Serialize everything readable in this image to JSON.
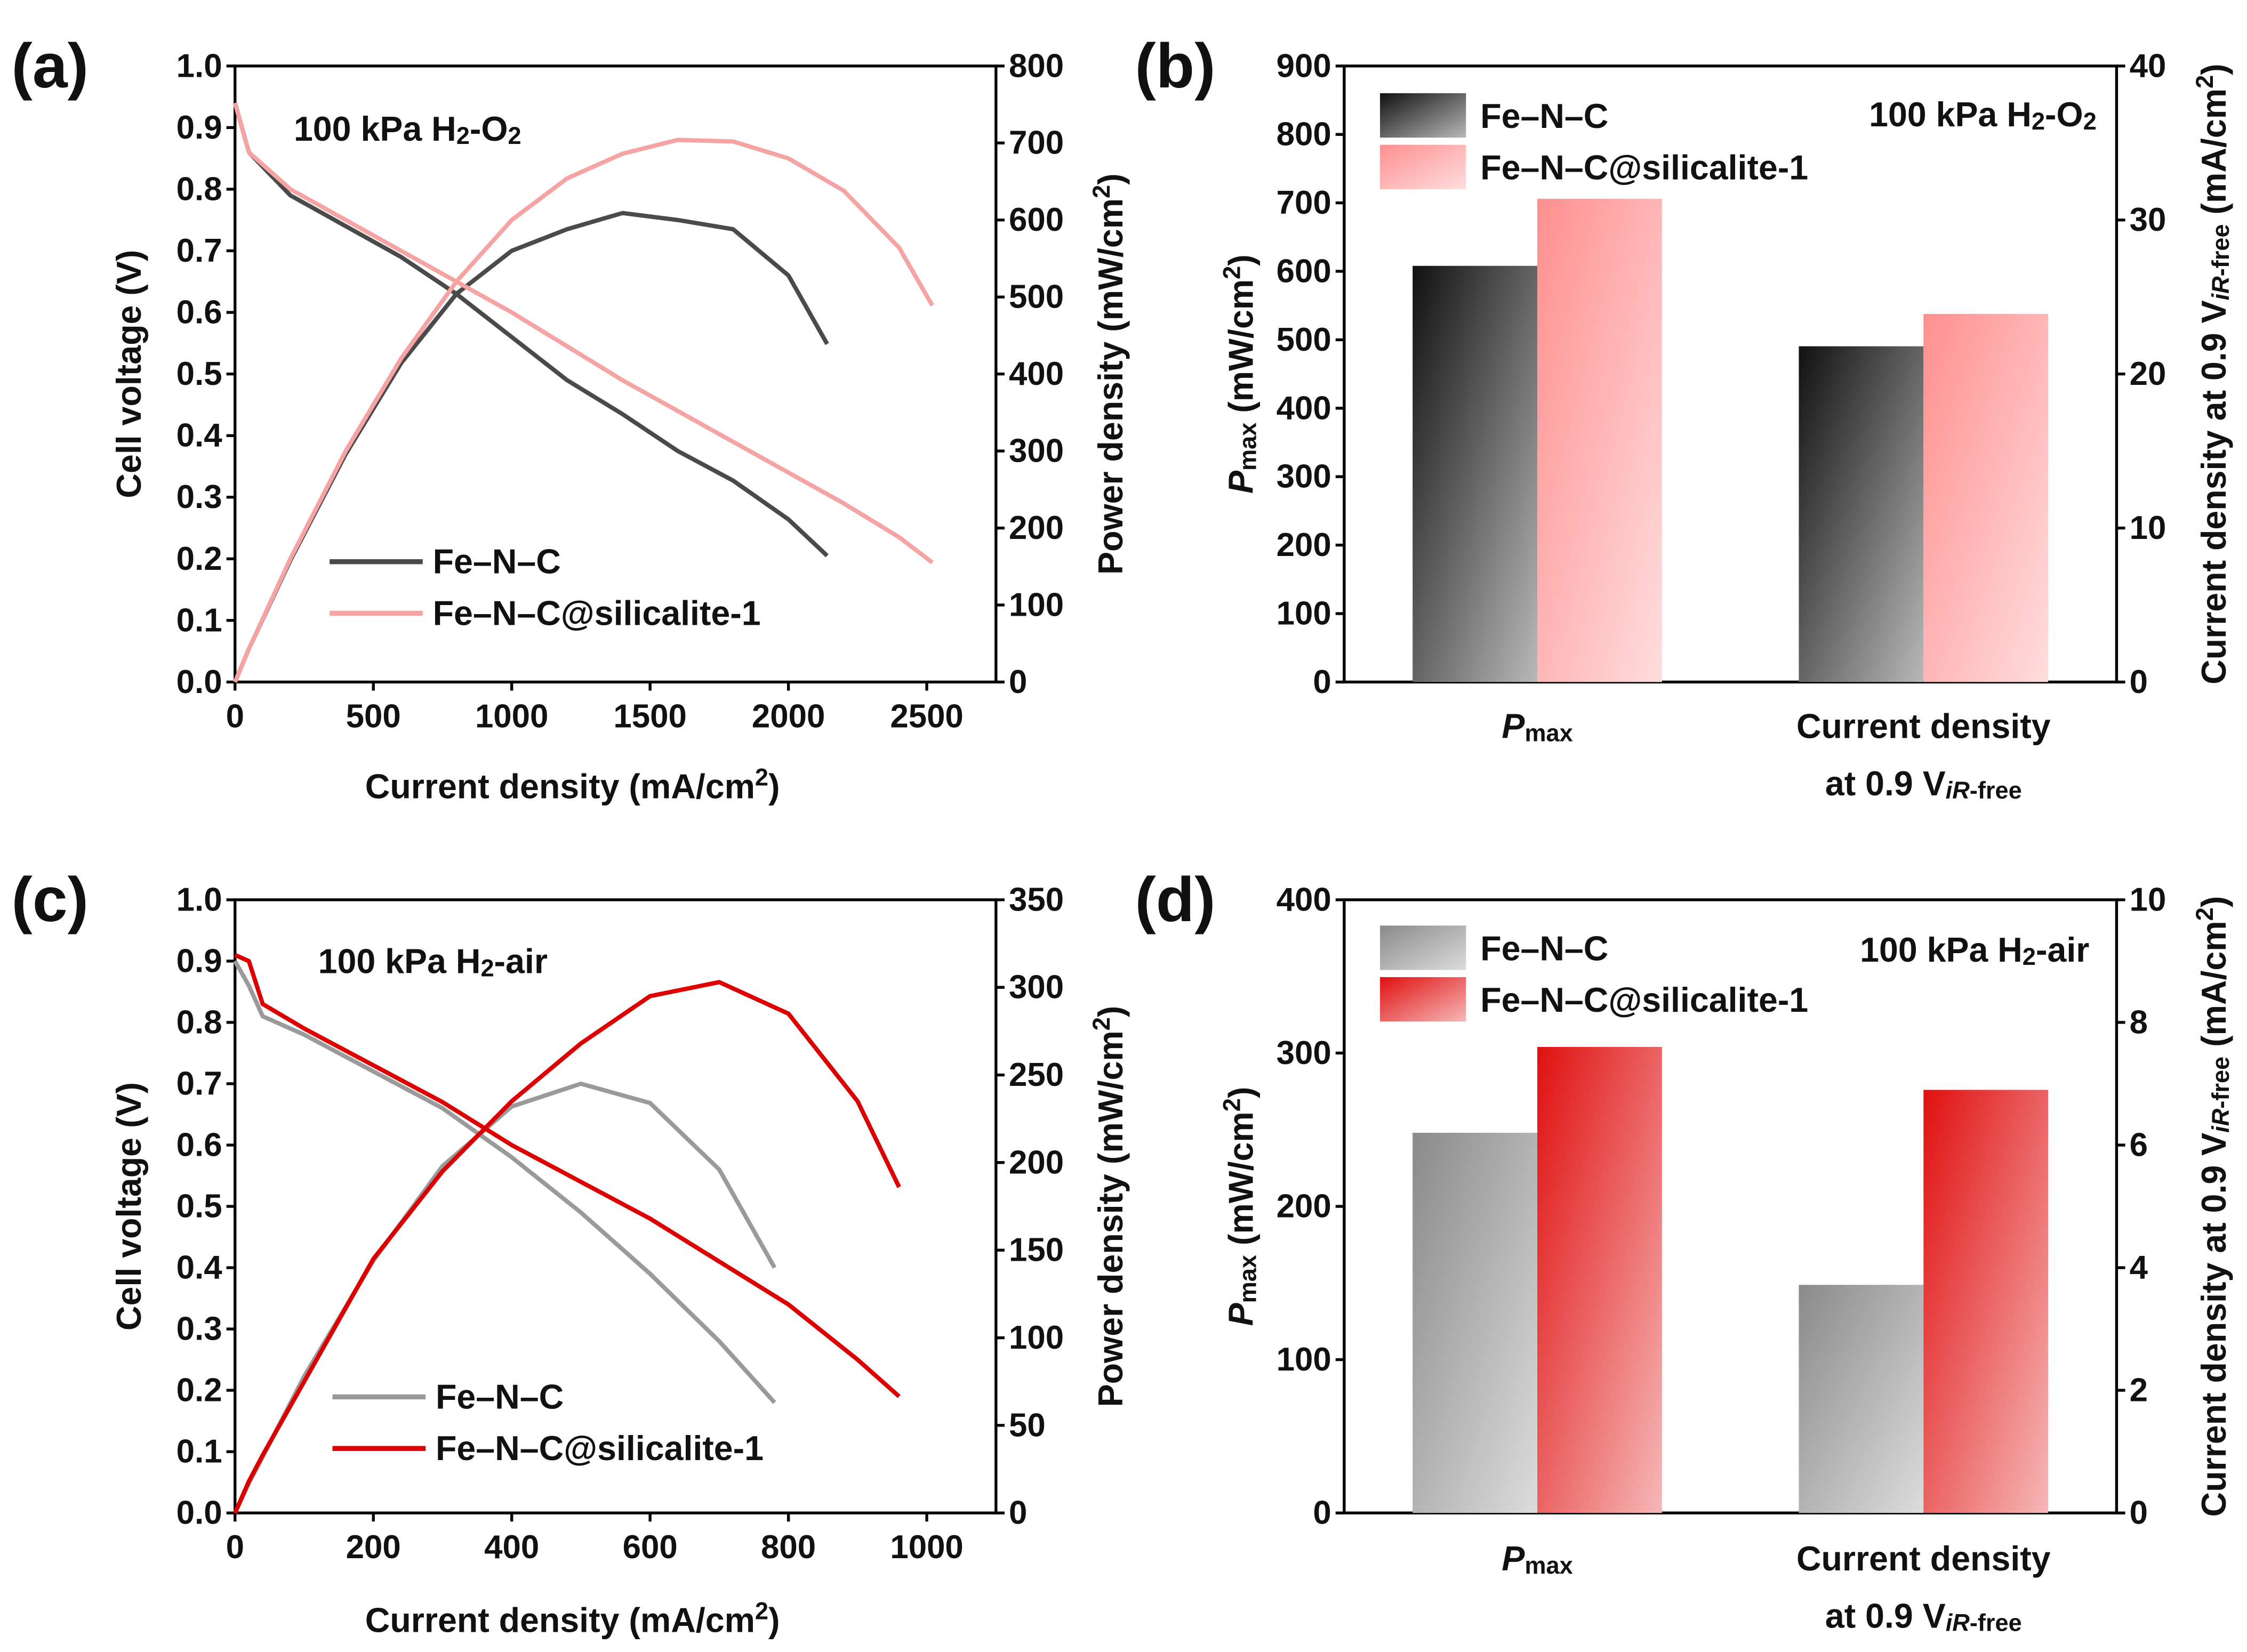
{
  "chart_data": [
    {
      "type": "line",
      "panel_label": "(a)",
      "annotation": [
        "100 kPa H",
        "2",
        "-O",
        "2"
      ],
      "x_label": [
        "Current density (mA/cm",
        "2",
        ")"
      ],
      "y_label": [
        "Cell voltage (V)"
      ],
      "y2_label": [
        "Power density (mW/cm",
        "2",
        ")"
      ],
      "xlim": [
        0,
        2750
      ],
      "xticks": [
        0,
        500,
        1000,
        1500,
        2000,
        2500
      ],
      "ylim": [
        0,
        1
      ],
      "yticks": [
        {
          "value": 0,
          "label": "0.0"
        },
        0.1,
        0.2,
        0.3,
        0.4,
        0.5,
        0.6,
        0.7,
        0.8,
        0.9,
        {
          "value": 1,
          "label": "1.0"
        }
      ],
      "y2lim": [
        0,
        800
      ],
      "y2ticks": [
        0,
        100,
        200,
        300,
        400,
        500,
        600,
        700,
        800
      ],
      "series": [
        {
          "name": "Fe–N–C",
          "color": "#4a4a4a",
          "x": [
            0,
            50,
            200,
            400,
            600,
            800,
            1000,
            1200,
            1400,
            1600,
            1800,
            2000,
            2140
          ],
          "values": [
            0.94,
            0.86,
            0.79,
            0.74,
            0.69,
            0.63,
            0.56,
            0.49,
            0.435,
            0.375,
            0.327,
            0.264,
            0.205
          ],
          "power": [
            0,
            43,
            158,
            296,
            414,
            504,
            560,
            588,
            609,
            600,
            588,
            528,
            439
          ]
        },
        {
          "name": "Fe–N–C@silicalite-1",
          "color": "#f5a3a3",
          "x": [
            0,
            50,
            200,
            400,
            600,
            800,
            1000,
            1200,
            1400,
            1600,
            1800,
            2000,
            2200,
            2400,
            2520
          ],
          "values": [
            0.94,
            0.86,
            0.8,
            0.75,
            0.7,
            0.65,
            0.6,
            0.545,
            0.49,
            0.44,
            0.39,
            0.34,
            0.29,
            0.235,
            0.194
          ],
          "power": [
            0,
            43,
            160,
            300,
            420,
            520,
            600,
            654,
            686,
            704,
            702,
            680,
            638,
            564,
            489
          ]
        }
      ]
    },
    {
      "type": "bar",
      "panel_label": "(b)",
      "annotation": [
        "100 kPa H",
        "2",
        "-O",
        "2"
      ],
      "y_label": [
        "P",
        "max",
        " (mW/cm",
        "2",
        ")"
      ],
      "y2_label": [
        "Current density at 0.9 V",
        "iR",
        "-free",
        " (mA/cm",
        "2",
        ")"
      ],
      "categories": [
        [
          [
            "P",
            "max"
          ]
        ],
        [
          [
            "Current density"
          ],
          [
            "at 0.9 V",
            "iR",
            "-free"
          ]
        ]
      ],
      "value_axes": [
        "y",
        "y2"
      ],
      "ylim": [
        0,
        900
      ],
      "yticks": [
        0,
        100,
        200,
        300,
        400,
        500,
        600,
        700,
        800,
        900
      ],
      "y2lim": [
        0,
        40
      ],
      "y2ticks": [
        0,
        10,
        20,
        30,
        40
      ],
      "series": [
        {
          "name": "Fe–N–C",
          "color": "#111111",
          "values": [
            608,
            21.8
          ]
        },
        {
          "name": "Fe–N–C@silicalite-1",
          "color": "#ff8f8f",
          "values": [
            706,
            23.9
          ]
        }
      ]
    },
    {
      "type": "line",
      "panel_label": "(c)",
      "annotation": [
        "100 kPa H",
        "2",
        "-air"
      ],
      "x_label": [
        "Current density (mA/cm",
        "2",
        ")"
      ],
      "y_label": [
        "Cell voltage (V)"
      ],
      "y2_label": [
        "Power density (mW/cm",
        "2",
        ")"
      ],
      "xlim": [
        0,
        1100
      ],
      "xticks": [
        0,
        200,
        400,
        600,
        800,
        1000
      ],
      "ylim": [
        0,
        1
      ],
      "yticks": [
        {
          "value": 0,
          "label": "0.0"
        },
        0.1,
        0.2,
        0.3,
        0.4,
        0.5,
        0.6,
        0.7,
        0.8,
        0.9,
        {
          "value": 1,
          "label": "1.0"
        }
      ],
      "y2lim": [
        0,
        350
      ],
      "y2ticks": [
        0,
        50,
        100,
        150,
        200,
        250,
        300,
        350
      ],
      "series": [
        {
          "name": "Fe–N–C",
          "color": "#9a9a9a",
          "x": [
            0,
            20,
            40,
            100,
            200,
            300,
            400,
            500,
            600,
            700,
            780
          ],
          "values": [
            0.9,
            0.86,
            0.81,
            0.78,
            0.72,
            0.66,
            0.58,
            0.49,
            0.39,
            0.28,
            0.18
          ],
          "power": [
            0,
            17,
            32,
            78,
            144,
            198,
            232,
            245,
            234,
            196,
            140
          ]
        },
        {
          "name": "Fe–N–C@silicalite-1",
          "color": "#dd0000",
          "x": [
            0,
            20,
            40,
            100,
            200,
            300,
            400,
            500,
            600,
            700,
            800,
            900,
            960
          ],
          "values": [
            0.91,
            0.9,
            0.83,
            0.79,
            0.73,
            0.67,
            0.6,
            0.54,
            0.48,
            0.41,
            0.34,
            0.25,
            0.19
          ],
          "power": [
            0,
            18,
            33,
            75,
            145,
            195,
            235,
            268,
            295,
            303,
            285,
            235,
            186
          ]
        }
      ]
    },
    {
      "type": "bar",
      "panel_label": "(d)",
      "annotation": [
        "100 kPa H",
        "2",
        "-air"
      ],
      "y_label": [
        "P",
        "max",
        " (mW/cm",
        "2",
        ")"
      ],
      "y2_label": [
        "Current density at 0.9 V",
        "iR",
        "-free",
        " (mA/cm",
        "2",
        ")"
      ],
      "categories": [
        [
          [
            "P",
            "max"
          ]
        ],
        [
          [
            "Current density"
          ],
          [
            "at 0.9 V",
            "iR",
            "-free"
          ]
        ]
      ],
      "value_axes": [
        "y",
        "y2"
      ],
      "ylim": [
        0,
        400
      ],
      "yticks": [
        0,
        100,
        200,
        300,
        400
      ],
      "y2lim": [
        0,
        10
      ],
      "y2ticks": [
        0,
        2,
        4,
        6,
        8,
        10
      ],
      "series": [
        {
          "name": "Fe–N–C",
          "color": "#8a8a8a",
          "values": [
            248,
            3.72
          ]
        },
        {
          "name": "Fe–N–C@silicalite-1",
          "color": "#e01010",
          "values": [
            304,
            6.9
          ]
        }
      ]
    }
  ]
}
